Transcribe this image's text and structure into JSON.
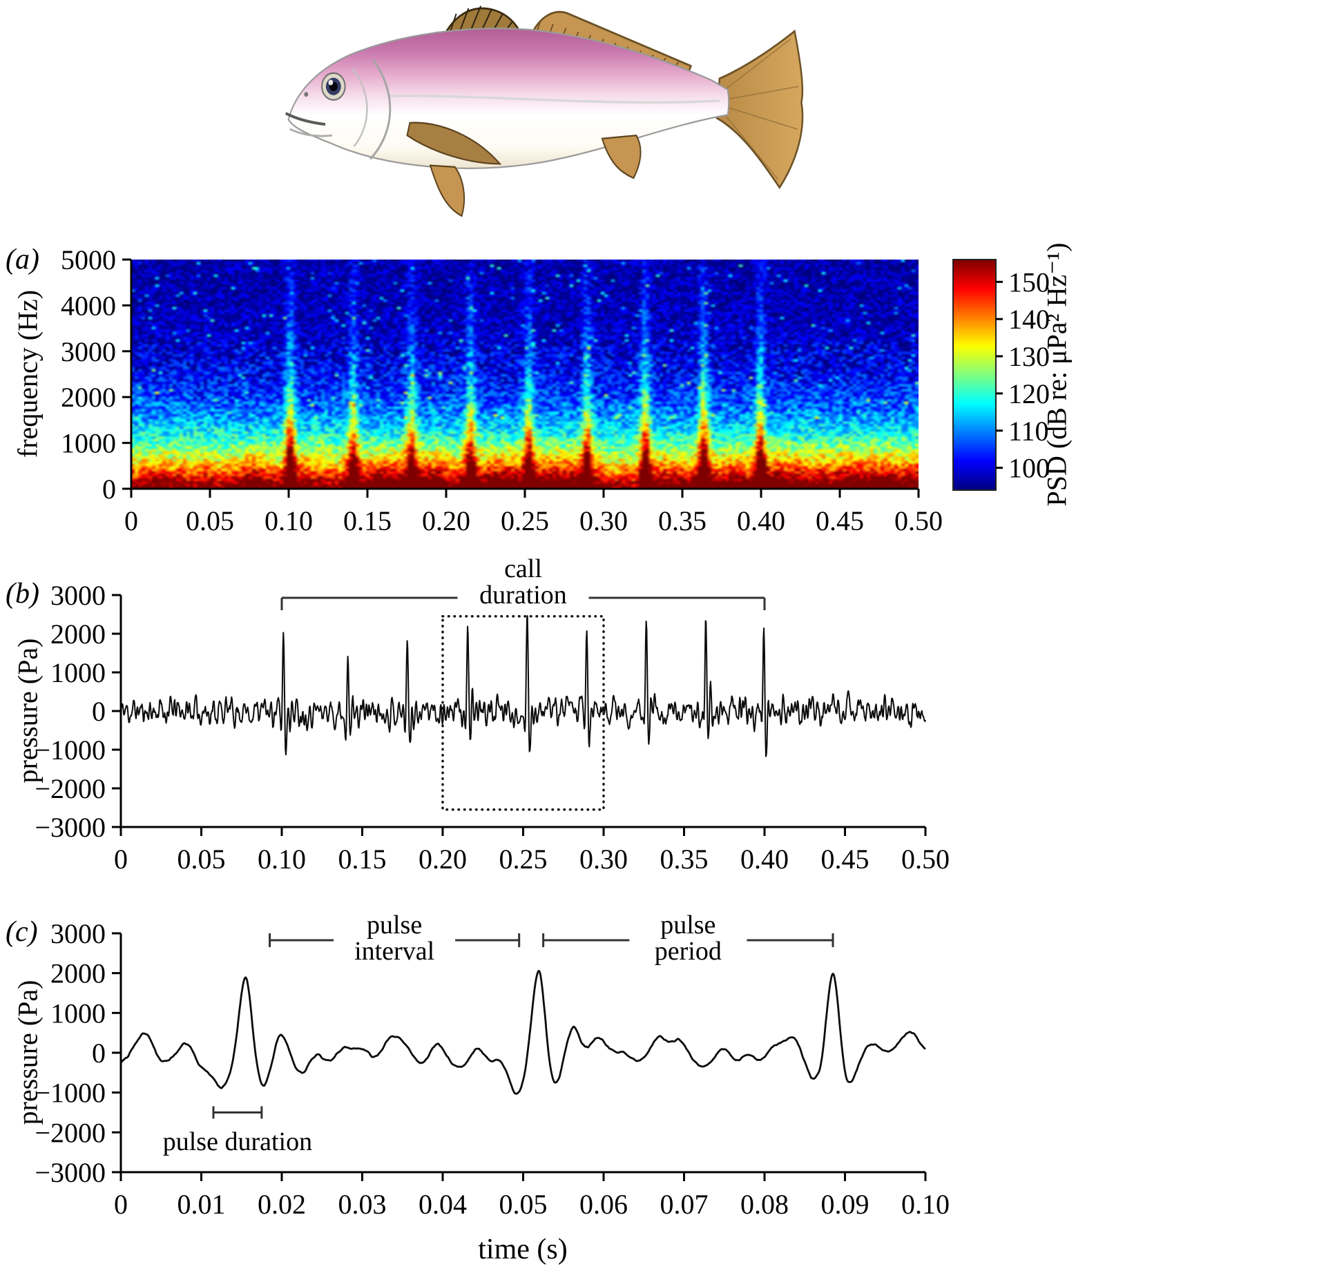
{
  "panels": {
    "a": {
      "label": "(a)"
    },
    "b": {
      "label": "(b)"
    },
    "c": {
      "label": "(c)"
    }
  },
  "fish": {
    "description": "croaker-like fish illustration, pink back, white belly, tan fins"
  },
  "chart_data": [
    {
      "id": "spectrogram",
      "type": "heatmap",
      "ylabel": "frequency (Hz)",
      "xlim": [
        0,
        0.5
      ],
      "ylim": [
        0,
        5000
      ],
      "xticks": [
        {
          "v": 0,
          "label": "0"
        },
        {
          "v": 0.05,
          "label": "0.05"
        },
        {
          "v": 0.1,
          "label": "0.10"
        },
        {
          "v": 0.15,
          "label": "0.15"
        },
        {
          "v": 0.2,
          "label": "0.20"
        },
        {
          "v": 0.25,
          "label": "0.25"
        },
        {
          "v": 0.3,
          "label": "0.30"
        },
        {
          "v": 0.35,
          "label": "0.35"
        },
        {
          "v": 0.4,
          "label": "0.40"
        },
        {
          "v": 0.45,
          "label": "0.45"
        },
        {
          "v": 0.5,
          "label": "0.50"
        }
      ],
      "yticks": [
        {
          "v": 0,
          "label": "0"
        },
        {
          "v": 1000,
          "label": "1000"
        },
        {
          "v": 2000,
          "label": "2000"
        },
        {
          "v": 3000,
          "label": "3000"
        },
        {
          "v": 4000,
          "label": "4000"
        },
        {
          "v": 5000,
          "label": "5000"
        }
      ],
      "colorbar": {
        "label": "PSD (dB re: μPa² Hz⁻¹)",
        "range_db": [
          94,
          156
        ],
        "ticks": [
          {
            "v": 100,
            "label": "100"
          },
          {
            "v": 110,
            "label": "110"
          },
          {
            "v": 120,
            "label": "120"
          },
          {
            "v": 130,
            "label": "130"
          },
          {
            "v": 140,
            "label": "140"
          },
          {
            "v": 150,
            "label": "150"
          }
        ]
      },
      "pulses_s": [
        0.101,
        0.141,
        0.178,
        0.2155,
        0.2525,
        0.2895,
        0.3265,
        0.3635,
        0.3995
      ],
      "background_db": 100,
      "low_band_peak_db": 150,
      "pulse_max_reach_hz": 4300
    },
    {
      "id": "call_waveform",
      "type": "line",
      "ylabel": "pressure (Pa)",
      "xlim": [
        0,
        0.5
      ],
      "ylim": [
        -3000,
        3000
      ],
      "xticks": [
        {
          "v": 0,
          "label": "0"
        },
        {
          "v": 0.05,
          "label": "0.05"
        },
        {
          "v": 0.1,
          "label": "0.10"
        },
        {
          "v": 0.15,
          "label": "0.15"
        },
        {
          "v": 0.2,
          "label": "0.20"
        },
        {
          "v": 0.25,
          "label": "0.25"
        },
        {
          "v": 0.3,
          "label": "0.30"
        },
        {
          "v": 0.35,
          "label": "0.35"
        },
        {
          "v": 0.4,
          "label": "0.40"
        },
        {
          "v": 0.45,
          "label": "0.45"
        },
        {
          "v": 0.5,
          "label": "0.50"
        }
      ],
      "yticks": [
        {
          "v": 3000,
          "label": "3000"
        },
        {
          "v": 2000,
          "label": "2000"
        },
        {
          "v": 1000,
          "label": "1000"
        },
        {
          "v": 0,
          "label": "0"
        },
        {
          "v": -1000,
          "label": "−1000"
        },
        {
          "v": -2000,
          "label": "−2000"
        },
        {
          "v": -3000,
          "label": "−3000"
        }
      ],
      "noise_peak_pa": 400,
      "pulses": [
        {
          "t": 0.101,
          "peak_pa": 2000
        },
        {
          "t": 0.141,
          "peak_pa": 1850
        },
        {
          "t": 0.178,
          "peak_pa": 2100
        },
        {
          "t": 0.2155,
          "peak_pa": 2300
        },
        {
          "t": 0.2525,
          "peak_pa": 2150
        },
        {
          "t": 0.2895,
          "peak_pa": 2200
        },
        {
          "t": 0.3265,
          "peak_pa": 2300
        },
        {
          "t": 0.3635,
          "peak_pa": 2200
        },
        {
          "t": 0.3995,
          "peak_pa": 2100
        }
      ],
      "annotations": {
        "call_duration": {
          "label_line1": "call",
          "label_line2": "duration",
          "span_s": [
            0.1,
            0.4
          ]
        },
        "zoom_box": {
          "span_s": [
            0.2,
            0.3
          ],
          "span_pa": [
            -2550,
            2450
          ]
        }
      }
    },
    {
      "id": "pulse_waveform",
      "type": "line",
      "xlabel": "time (s)",
      "ylabel": "pressure (Pa)",
      "xlim": [
        0,
        0.1
      ],
      "ylim": [
        -3000,
        3000
      ],
      "xticks": [
        {
          "v": 0,
          "label": "0"
        },
        {
          "v": 0.01,
          "label": "0.01"
        },
        {
          "v": 0.02,
          "label": "0.02"
        },
        {
          "v": 0.03,
          "label": "0.03"
        },
        {
          "v": 0.04,
          "label": "0.04"
        },
        {
          "v": 0.05,
          "label": "0.05"
        },
        {
          "v": 0.06,
          "label": "0.06"
        },
        {
          "v": 0.07,
          "label": "0.07"
        },
        {
          "v": 0.08,
          "label": "0.08"
        },
        {
          "v": 0.09,
          "label": "0.09"
        },
        {
          "v": 0.1,
          "label": "0.10"
        }
      ],
      "yticks": [
        {
          "v": 3000,
          "label": "3000"
        },
        {
          "v": 2000,
          "label": "2000"
        },
        {
          "v": 1000,
          "label": "1000"
        },
        {
          "v": 0,
          "label": "0"
        },
        {
          "v": -1000,
          "label": "−1000"
        },
        {
          "v": -2000,
          "label": "−2000"
        },
        {
          "v": -3000,
          "label": "−3000"
        }
      ],
      "pulses": [
        {
          "t": 0.0155,
          "peak_pa": 2250
        },
        {
          "t": 0.052,
          "peak_pa": 2100
        },
        {
          "t": 0.0885,
          "peak_pa": 2150
        }
      ],
      "annotations": {
        "pulse_interval": {
          "label_line1": "pulse",
          "label_line2": "interval",
          "span_s": [
            0.0185,
            0.0495
          ]
        },
        "pulse_period": {
          "label_line1": "pulse",
          "label_line2": "period",
          "span_s": [
            0.0525,
            0.0885
          ]
        },
        "pulse_duration": {
          "label": "pulse duration",
          "span_s": [
            0.0115,
            0.0175
          ],
          "y_pa": -1500
        }
      }
    }
  ]
}
